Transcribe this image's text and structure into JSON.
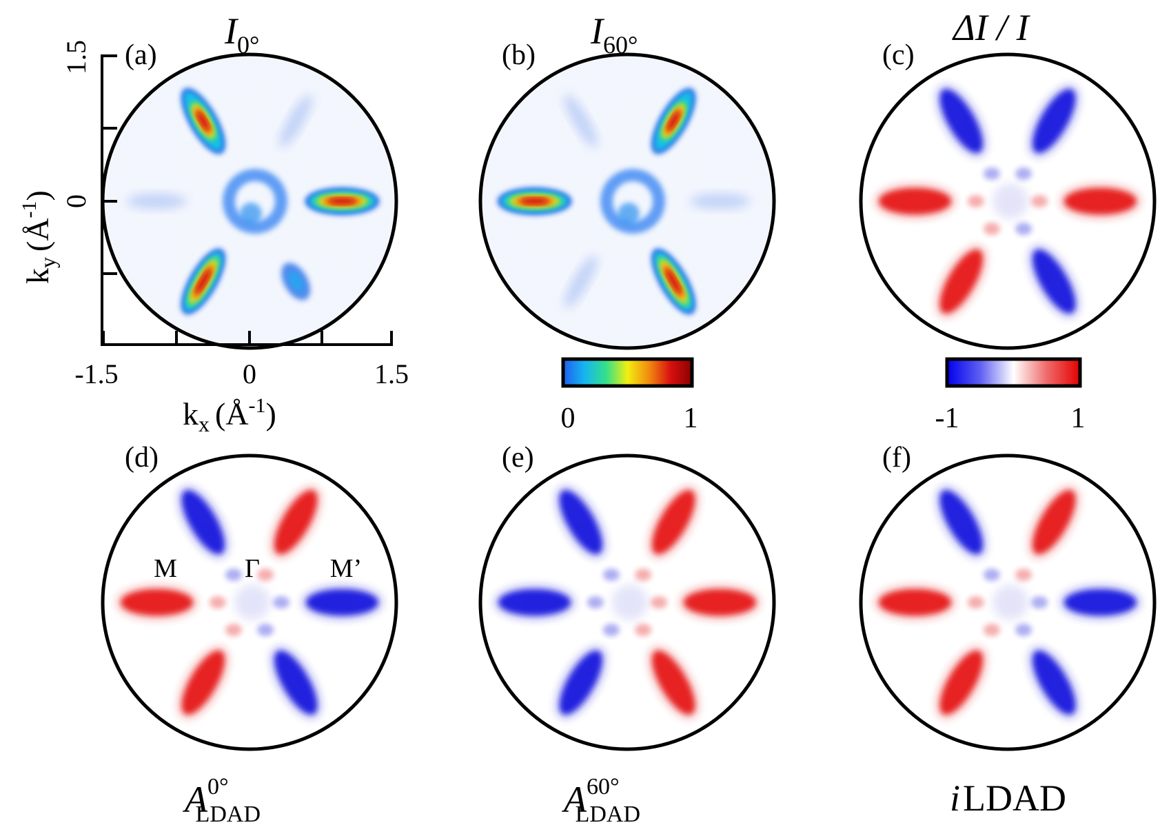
{
  "panels": [
    {
      "id": "a",
      "label": "(a)",
      "top_title": {
        "main": "I",
        "sub": "0°"
      },
      "map": "intensity",
      "lobe_weights": [
        1.0,
        0.12,
        0.78,
        0.12,
        1.0,
        0.3
      ]
    },
    {
      "id": "b",
      "label": "(b)",
      "top_title": {
        "main": "I",
        "sub": "60°"
      },
      "map": "intensity",
      "lobe_weights": [
        0.12,
        0.78,
        0.12,
        1.0,
        0.12,
        1.0
      ]
    },
    {
      "id": "c",
      "label": "(c)",
      "top_title": {
        "text": "ΔI / I"
      },
      "map": "diverging",
      "lobe_signs": [
        1,
        -1,
        -1,
        1,
        1,
        -1
      ]
    },
    {
      "id": "d",
      "label": "(d)",
      "bottom_title": {
        "main": "A",
        "sup": "0°",
        "sub": "LDAD"
      },
      "map": "diverging",
      "lobe_signs": [
        -1,
        1,
        -1,
        1,
        1,
        -1
      ],
      "points": {
        "M": "M",
        "Gamma": "Γ",
        "Mprime": "M’"
      }
    },
    {
      "id": "e",
      "label": "(e)",
      "bottom_title": {
        "main": "A",
        "sup": "60°",
        "sub": "LDAD"
      },
      "map": "diverging",
      "lobe_signs": [
        1,
        1,
        -1,
        -1,
        -1,
        1
      ]
    },
    {
      "id": "f",
      "label": "(f)",
      "bottom_title": {
        "prefix": "i",
        "text": "LDAD"
      },
      "map": "diverging",
      "lobe_signs": [
        -1,
        1,
        -1,
        1,
        1,
        -1
      ]
    }
  ],
  "axes": {
    "x_label": {
      "main": "k",
      "sub": "x",
      "unit": "(Å",
      "exp": "-1",
      "close": ")"
    },
    "y_label": {
      "main": "k",
      "sub": "y",
      "unit": "(Å",
      "exp": "-1",
      "close": ")"
    },
    "x_ticks": [
      "-1.5",
      "0",
      "1.5"
    ],
    "y_ticks": [
      "1.5",
      "0"
    ],
    "range": [
      -1.5,
      1.5
    ]
  },
  "colorbars": [
    {
      "id": "intensity",
      "min_label": "0",
      "max_label": "1",
      "stops": [
        "#1e5ef0",
        "#16b6f0",
        "#33e08a",
        "#f2ee10",
        "#f28a10",
        "#d81010",
        "#8a0000"
      ]
    },
    {
      "id": "diverging",
      "min_label": "-1",
      "max_label": "1",
      "stops": [
        "#0000ee",
        "#5f5ff2",
        "#ffffff",
        "#f06a6a",
        "#e40000"
      ]
    }
  ],
  "colors": {
    "blue": "#1515dd",
    "red": "#e51515",
    "frame": "#000000"
  }
}
